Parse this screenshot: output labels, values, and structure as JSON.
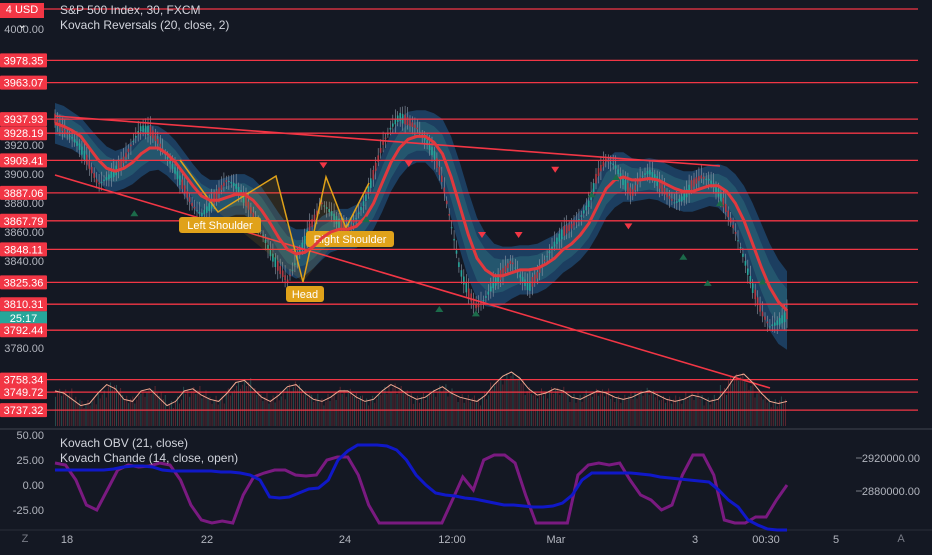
{
  "chart_data": [
    {
      "type": "line",
      "title": "S&P 500 Index, 30, FXCM",
      "indicator": "Kovach Reversals (20, close, 2)",
      "currency": "USD",
      "x_tick_labels": [
        "18",
        "22",
        "24",
        "12:00",
        "Mar",
        "3",
        "00:30",
        "5"
      ],
      "y_tick_labels": [
        "4000.00",
        "3920.00",
        "3900.00",
        "3880.00",
        "3860.00",
        "3840.00",
        "3780.00"
      ],
      "ylim": [
        3725,
        4020
      ],
      "price_badge": "4",
      "horizontal_levels": [
        "3978.35",
        "3963.07",
        "3937.93",
        "3928.19",
        "3909.41",
        "3887.06",
        "3867.79",
        "3848.11",
        "3825.36",
        "3810.31",
        "3792.44",
        "3758.34",
        "3749.72",
        "3737.32"
      ],
      "current_price_box": {
        "price": "3810.31",
        "countdown": "25:17"
      },
      "pattern_labels": [
        "Left Shoulder",
        "Head",
        "Right Shoulder"
      ],
      "colors": {
        "background": "#141823",
        "price": "#26a69a",
        "moving_average": "#e0393e",
        "band": "#1f4f7a",
        "levels": "#f23645",
        "pattern": "#e0a21a",
        "oscillator": "#f0a890"
      },
      "close_series": [
        3938,
        3930,
        3925,
        3918,
        3906,
        3893,
        3897,
        3902,
        3910,
        3922,
        3932,
        3930,
        3922,
        3912,
        3902,
        3890,
        3878,
        3872,
        3878,
        3888,
        3896,
        3892,
        3883,
        3872,
        3860,
        3846,
        3835,
        3826,
        3840,
        3855,
        3868,
        3880,
        3874,
        3866,
        3860,
        3870,
        3882,
        3900,
        3920,
        3932,
        3940,
        3936,
        3932,
        3924,
        3914,
        3895,
        3865,
        3835,
        3818,
        3808,
        3815,
        3825,
        3832,
        3840,
        3830,
        3822,
        3830,
        3842,
        3852,
        3860,
        3864,
        3870,
        3880,
        3900,
        3910,
        3906,
        3895,
        3886,
        3898,
        3902,
        3895,
        3886,
        3880,
        3884,
        3893,
        3898,
        3896,
        3888,
        3875,
        3860,
        3842,
        3822,
        3805,
        3795,
        3798,
        3803
      ],
      "moving_average": [
        3935,
        3933,
        3930,
        3926,
        3918,
        3910,
        3904,
        3902,
        3904,
        3908,
        3914,
        3918,
        3918,
        3914,
        3908,
        3900,
        3892,
        3885,
        3882,
        3882,
        3884,
        3886,
        3886,
        3882,
        3875,
        3866,
        3856,
        3848,
        3845,
        3846,
        3850,
        3856,
        3860,
        3862,
        3862,
        3864,
        3870,
        3880,
        3894,
        3908,
        3918,
        3924,
        3926,
        3926,
        3922,
        3914,
        3898,
        3878,
        3858,
        3842,
        3834,
        3830,
        3830,
        3832,
        3834,
        3834,
        3835,
        3838,
        3842,
        3848,
        3852,
        3858,
        3866,
        3878,
        3890,
        3896,
        3898,
        3896,
        3896,
        3897,
        3896,
        3893,
        3890,
        3888,
        3888,
        3890,
        3892,
        3892,
        3888,
        3880,
        3868,
        3852,
        3836,
        3822,
        3812,
        3806
      ],
      "band_width": [
        14,
        14,
        13,
        13,
        14,
        15,
        15,
        14,
        14,
        15,
        16,
        16,
        15,
        15,
        15,
        15,
        15,
        15,
        14,
        14,
        14,
        14,
        14,
        15,
        16,
        16,
        17,
        17,
        17,
        16,
        15,
        15,
        14,
        14,
        14,
        15,
        16,
        18,
        20,
        20,
        20,
        19,
        18,
        18,
        20,
        24,
        28,
        30,
        30,
        28,
        25,
        22,
        20,
        18,
        17,
        17,
        17,
        17,
        16,
        16,
        16,
        17,
        18,
        20,
        20,
        19,
        17,
        15,
        14,
        14,
        14,
        14,
        14,
        14,
        14,
        14,
        14,
        15,
        17,
        20,
        24,
        28,
        30,
        30,
        29,
        27
      ],
      "reversal_down_markers": [
        [
          44,
          3906
        ],
        [
          58,
          3907
        ],
        [
          70,
          3858
        ],
        [
          76,
          3858
        ],
        [
          82,
          3903
        ],
        [
          94,
          3864
        ]
      ],
      "reversal_up_markers": [
        [
          13,
          3873
        ],
        [
          51,
          3869
        ],
        [
          63,
          3807
        ],
        [
          69,
          3804
        ],
        [
          88,
          3886
        ],
        [
          92,
          3898
        ],
        [
          103,
          3843
        ],
        [
          107,
          3825
        ],
        [
          109,
          3880
        ],
        [
          116,
          3826
        ]
      ],
      "oscillator": [
        0.55,
        0.5,
        0.35,
        0.2,
        0.25,
        0.5,
        0.7,
        0.6,
        0.35,
        0.3,
        0.55,
        0.6,
        0.4,
        0.2,
        0.3,
        0.55,
        0.6,
        0.45,
        0.35,
        0.3,
        0.5,
        0.75,
        0.8,
        0.6,
        0.4,
        0.3,
        0.45,
        0.65,
        0.7,
        0.5,
        0.35,
        0.3,
        0.4,
        0.55,
        0.55,
        0.4,
        0.3,
        0.35,
        0.55,
        0.7,
        0.6,
        0.45,
        0.35,
        0.4,
        0.55,
        0.65,
        0.5,
        0.4,
        0.35,
        0.3,
        0.45,
        0.7,
        0.9,
        1.0,
        0.85,
        0.6,
        0.45,
        0.5,
        0.6,
        0.55,
        0.4,
        0.35,
        0.45,
        0.55,
        0.5,
        0.4,
        0.35,
        0.4,
        0.5,
        0.55,
        0.45,
        0.35,
        0.3,
        0.35,
        0.45,
        0.4,
        0.3,
        0.35,
        0.6,
        0.9,
        0.95,
        0.75,
        0.5,
        0.3,
        0.25,
        0.3
      ]
    },
    {
      "type": "line",
      "indicators": [
        "Kovach OBV (21, close)",
        "Kovach Chande (14, close, open)"
      ],
      "left_ticks": [
        "50.00",
        "25.00",
        "0.00",
        "-25.00"
      ],
      "right_ticks": [
        "2920000.00",
        "2880000.00"
      ],
      "ylim": [
        -45,
        55
      ],
      "colors": {
        "obv": "#1018c8",
        "chande": "#7a1a80"
      },
      "chande_series": [
        22,
        20,
        5,
        -20,
        -25,
        -5,
        15,
        20,
        18,
        19,
        22,
        20,
        5,
        -20,
        -35,
        -38,
        -36,
        -38,
        -10,
        8,
        12,
        15,
        15,
        10,
        9,
        10,
        25,
        28,
        28,
        10,
        -20,
        -38,
        -38,
        -38,
        -38,
        -38,
        -38,
        -38,
        -15,
        8,
        -5,
        25,
        30,
        30,
        22,
        -10,
        -38,
        -38,
        -38,
        -38,
        10,
        20,
        22,
        20,
        22,
        5,
        -10,
        -15,
        -25,
        -20,
        10,
        30,
        30,
        10,
        -35,
        -38,
        -38,
        -32,
        -32,
        -15,
        0
      ],
      "obv_series": [
        15,
        15,
        15,
        15,
        15,
        15,
        16,
        18,
        19,
        19,
        18,
        15,
        14,
        14,
        14,
        14,
        14,
        13,
        13,
        12,
        10,
        5,
        -12,
        -13,
        -12,
        -8,
        -4,
        -3,
        5,
        25,
        34,
        40,
        40,
        40,
        39,
        35,
        25,
        10,
        0,
        -8,
        -10,
        -11,
        -13,
        -14,
        -16,
        -18,
        -20,
        -20,
        -21,
        -22,
        -22,
        -21,
        -18,
        -10,
        5,
        12,
        12,
        12,
        12,
        12,
        11,
        10,
        8,
        7,
        6,
        5,
        4,
        3,
        -5,
        -15,
        -22,
        -35,
        -40,
        -44,
        -45,
        -45
      ]
    }
  ],
  "footer": {
    "z_button": "Z",
    "a_button": "A"
  }
}
